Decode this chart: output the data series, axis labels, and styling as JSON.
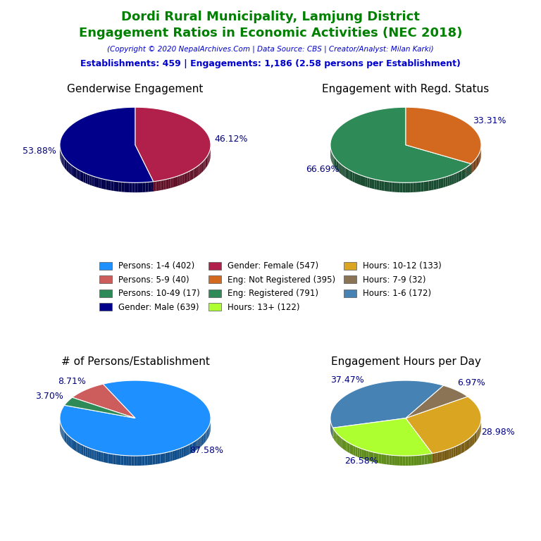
{
  "title_line1": "Dordi Rural Municipality, Lamjung District",
  "title_line2": "Engagement Ratios in Economic Activities (NEC 2018)",
  "title_color": "#008000",
  "copyright_text": "(Copyright © 2020 NepalArchives.Com | Data Source: CBS | Creator/Analyst: Milan Karki)",
  "stats_text": "Establishments: 459 | Engagements: 1,186 (2.58 persons per Establishment)",
  "subtitle_color": "#0000CD",
  "pie1_title": "Genderwise Engagement",
  "pie1_values": [
    53.88,
    46.12
  ],
  "pie1_colors": [
    "#00008B",
    "#B0204A"
  ],
  "pie1_labels": [
    "53.88%",
    "46.12%"
  ],
  "pie1_label_angles": [
    90,
    270
  ],
  "pie1_startangle": 90,
  "pie2_title": "Engagement with Regd. Status",
  "pie2_values": [
    66.69,
    33.31
  ],
  "pie2_colors": [
    "#2E8B57",
    "#D2691E"
  ],
  "pie2_labels": [
    "66.69%",
    "33.31%"
  ],
  "pie2_label_angles": [
    90,
    300
  ],
  "pie2_startangle": 90,
  "pie3_title": "# of Persons/Establishment",
  "pie3_values": [
    87.58,
    8.71,
    3.7
  ],
  "pie3_colors": [
    "#1E90FF",
    "#CD5C5C",
    "#2E8B57"
  ],
  "pie3_labels": [
    "87.58%",
    "8.71%",
    "3.70%"
  ],
  "pie3_startangle": 160,
  "pie4_title": "Engagement Hours per Day",
  "pie4_values": [
    37.47,
    26.58,
    28.98,
    6.97
  ],
  "pie4_colors": [
    "#4682B4",
    "#ADFF2F",
    "#DAA520",
    "#8B7355"
  ],
  "pie4_labels": [
    "37.47%",
    "26.58%",
    "28.98%",
    "6.97%"
  ],
  "pie4_startangle": 60,
  "legend_items": [
    {
      "label": "Persons: 1-4 (402)",
      "color": "#1E90FF"
    },
    {
      "label": "Persons: 5-9 (40)",
      "color": "#CD5C5C"
    },
    {
      "label": "Persons: 10-49 (17)",
      "color": "#2E8B57"
    },
    {
      "label": "Gender: Male (639)",
      "color": "#00008B"
    },
    {
      "label": "Gender: Female (547)",
      "color": "#B0204A"
    },
    {
      "label": "Eng: Not Registered (395)",
      "color": "#D2691E"
    },
    {
      "label": "Eng: Registered (791)",
      "color": "#2E8B57"
    },
    {
      "label": "Hours: 13+ (122)",
      "color": "#ADFF2F"
    },
    {
      "label": "Hours: 10-12 (133)",
      "color": "#DAA520"
    },
    {
      "label": "Hours: 7-9 (32)",
      "color": "#8B7355"
    },
    {
      "label": "Hours: 1-6 (172)",
      "color": "#4682B4"
    }
  ]
}
